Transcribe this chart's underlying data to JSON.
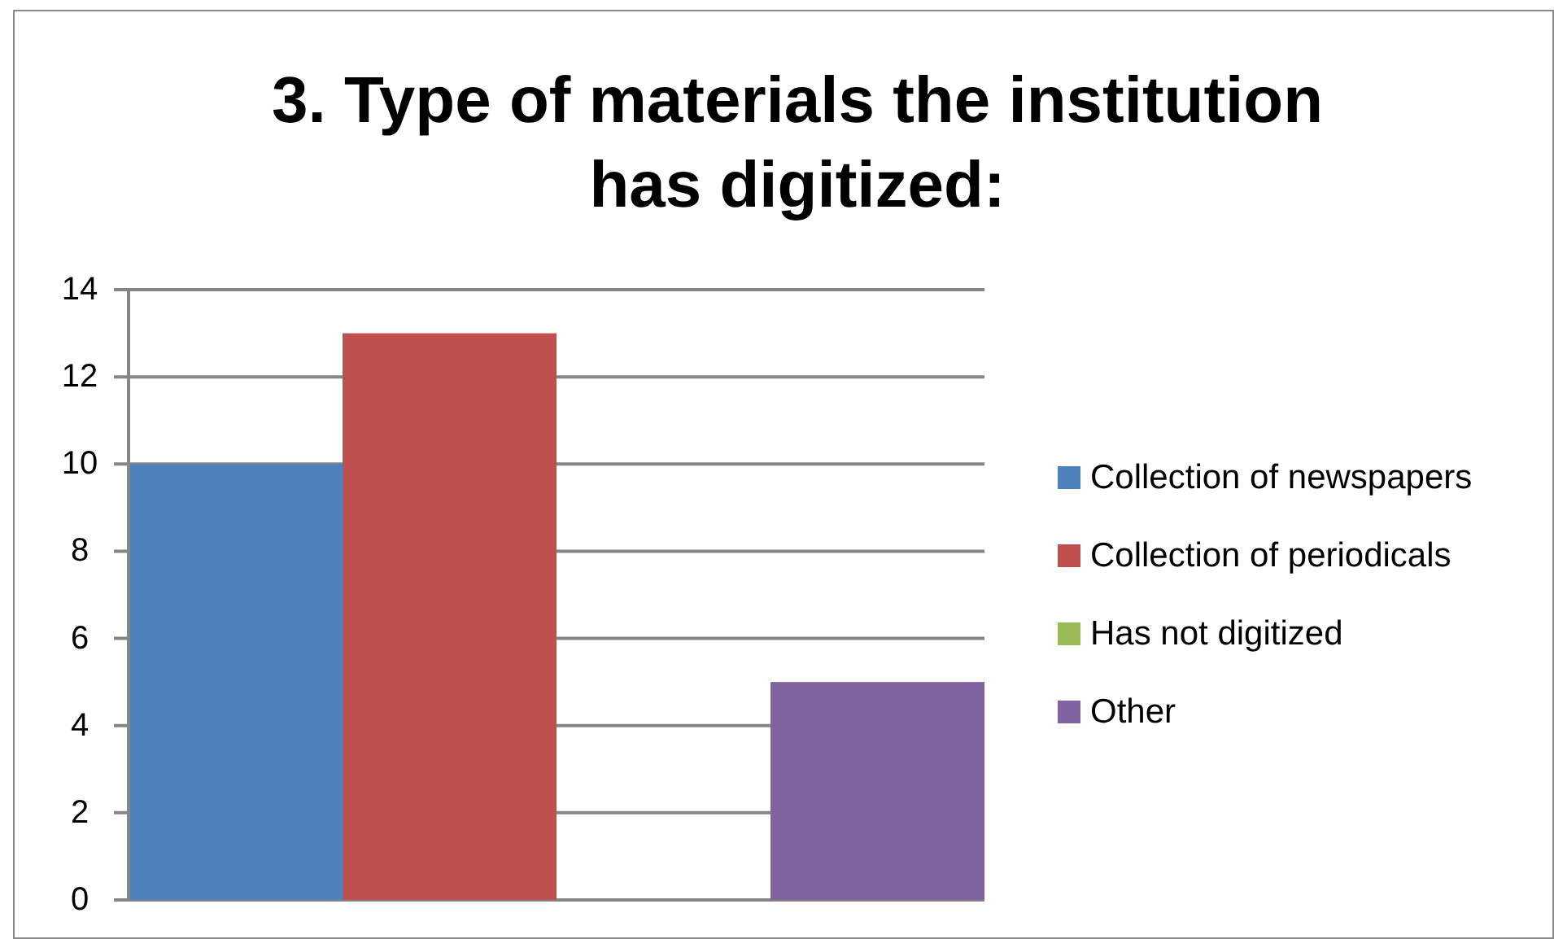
{
  "chart_data": {
    "type": "bar",
    "title": "3. Type of materials the institution has digitized:",
    "categories": [
      null
    ],
    "series": [
      {
        "name": "Collection of newspapers",
        "color": "#4f81bd",
        "values": [
          10
        ]
      },
      {
        "name": "Collection of periodicals",
        "color": "#c0504d",
        "values": [
          13
        ]
      },
      {
        "name": "Has not digitized",
        "color": "#9bbb59",
        "values": [
          0
        ]
      },
      {
        "name": "Other",
        "color": "#8064a2",
        "values": [
          5
        ]
      }
    ],
    "ylim": [
      0,
      14
    ],
    "yticks": [
      0,
      2,
      4,
      6,
      8,
      10,
      12,
      14
    ],
    "grid": "y",
    "legend": "right"
  }
}
